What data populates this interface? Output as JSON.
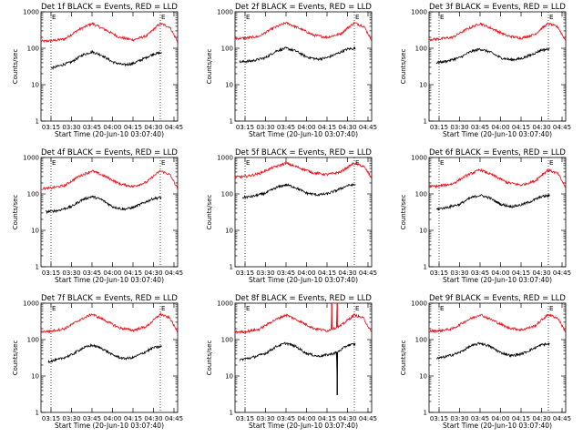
{
  "chart_data": {
    "type": "line",
    "layout": "3x3",
    "y_scale": "log",
    "ylim": [
      1,
      1000
    ],
    "y_tick_labels": [
      "1",
      "10",
      "100",
      "1000"
    ],
    "x_tick_labels": [
      "03:15",
      "03:30",
      "03:45",
      "04:00",
      "04:15",
      "04:30",
      "04:45"
    ],
    "xlim_minutes": [
      187.67,
      287.67
    ],
    "x_tick_minutes": [
      195,
      210,
      225,
      240,
      255,
      270,
      285
    ],
    "xlabel": "Start Time (20-Jun-10 03:07:40)",
    "ylabel": "Counts/sec",
    "marker_label": "E",
    "colors": {
      "events": "#000000",
      "lld": "#e8101a"
    },
    "panels": [
      {
        "title": "Det 1f BLACK = Events, RED = LLD",
        "markers": [
          195,
          275
        ],
        "events": {
          "x": [
            195,
            200,
            210,
            218,
            225,
            232,
            240,
            248,
            255,
            262,
            270,
            276
          ],
          "y": [
            28,
            32,
            42,
            65,
            80,
            65,
            42,
            35,
            38,
            50,
            70,
            75
          ]
        },
        "lld": {
          "x": [
            187.67,
            195,
            205,
            215,
            225,
            235,
            245,
            255,
            265,
            270,
            275,
            282,
            287.67
          ],
          "y": [
            155,
            160,
            180,
            320,
            480,
            320,
            200,
            170,
            220,
            330,
            480,
            380,
            150
          ]
        }
      },
      {
        "title": "Det 2f BLACK = Events, RED = LLD",
        "markers": [
          195,
          275
        ],
        "events": {
          "x": [
            191,
            200,
            210,
            218,
            225,
            232,
            240,
            248,
            255,
            262,
            270,
            276
          ],
          "y": [
            42,
            45,
            55,
            85,
            100,
            85,
            58,
            50,
            55,
            70,
            95,
            100
          ]
        },
        "lld": {
          "x": [
            187.67,
            195,
            205,
            215,
            225,
            235,
            245,
            255,
            265,
            270,
            275,
            282,
            287.67
          ],
          "y": [
            185,
            190,
            210,
            350,
            500,
            350,
            230,
            200,
            250,
            360,
            500,
            400,
            170
          ]
        }
      },
      {
        "title": "Det 3f BLACK = Events, RED = LLD",
        "markers": [
          195,
          275
        ],
        "events": {
          "x": [
            193,
            200,
            210,
            218,
            225,
            232,
            240,
            248,
            255,
            262,
            270,
            276
          ],
          "y": [
            40,
            44,
            55,
            80,
            95,
            80,
            55,
            48,
            52,
            65,
            90,
            95
          ]
        },
        "lld": {
          "x": [
            187.67,
            195,
            205,
            215,
            225,
            235,
            245,
            255,
            265,
            270,
            275,
            282,
            287.67
          ],
          "y": [
            175,
            180,
            200,
            330,
            480,
            330,
            220,
            190,
            240,
            350,
            480,
            380,
            160
          ]
        }
      },
      {
        "title": "Det 4f BLACK = Events, RED = LLD",
        "markers": [
          195,
          275
        ],
        "events": {
          "x": [
            191,
            200,
            210,
            218,
            225,
            232,
            240,
            248,
            255,
            262,
            270,
            276
          ],
          "y": [
            32,
            35,
            45,
            70,
            85,
            70,
            45,
            38,
            42,
            55,
            75,
            80
          ]
        },
        "lld": {
          "x": [
            187.67,
            195,
            205,
            215,
            225,
            235,
            245,
            255,
            265,
            270,
            275,
            282,
            287.67
          ],
          "y": [
            140,
            145,
            170,
            300,
            430,
            300,
            190,
            160,
            210,
            310,
            430,
            340,
            140
          ]
        }
      },
      {
        "title": "Det 5f BLACK = Events, RED = LLD",
        "markers": [
          195,
          275
        ],
        "events": {
          "x": [
            193,
            200,
            210,
            218,
            225,
            232,
            240,
            248,
            255,
            262,
            270,
            276
          ],
          "y": [
            80,
            85,
            105,
            150,
            180,
            150,
            105,
            95,
            100,
            125,
            170,
            180
          ]
        },
        "lld": {
          "x": [
            187.67,
            195,
            205,
            215,
            225,
            235,
            245,
            255,
            265,
            270,
            275,
            282,
            287.67
          ],
          "y": [
            290,
            300,
            360,
            520,
            700,
            520,
            380,
            340,
            400,
            540,
            700,
            560,
            280
          ]
        }
      },
      {
        "title": "Det 6f BLACK = Events, RED = LLD",
        "markers": [
          195,
          275
        ],
        "events": {
          "x": [
            193,
            200,
            210,
            218,
            225,
            232,
            240,
            248,
            255,
            262,
            270,
            276
          ],
          "y": [
            38,
            42,
            52,
            78,
            92,
            78,
            52,
            45,
            50,
            62,
            85,
            90
          ]
        },
        "lld": {
          "x": [
            187.67,
            195,
            205,
            215,
            225,
            235,
            245,
            255,
            265,
            270,
            275,
            282,
            287.67
          ],
          "y": [
            160,
            165,
            190,
            320,
            460,
            320,
            205,
            175,
            225,
            330,
            460,
            360,
            150
          ]
        }
      },
      {
        "title": "Det 7f BLACK = Events, RED = LLD",
        "markers": [
          195,
          275
        ],
        "events": {
          "x": [
            193,
            200,
            210,
            218,
            225,
            232,
            240,
            248,
            255,
            262,
            270,
            276
          ],
          "y": [
            25,
            28,
            38,
            58,
            70,
            58,
            38,
            30,
            32,
            42,
            60,
            65
          ]
        },
        "lld": {
          "x": [
            187.67,
            195,
            205,
            215,
            225,
            235,
            245,
            255,
            265,
            270,
            275,
            282,
            287.67
          ],
          "y": [
            165,
            170,
            200,
            330,
            500,
            330,
            210,
            180,
            230,
            340,
            500,
            390,
            160
          ]
        }
      },
      {
        "title": "Det 8f BLACK = Events, RED = LLD",
        "markers": [
          195,
          275
        ],
        "events": {
          "x": [
            191,
            200,
            210,
            218,
            225,
            232,
            240,
            248,
            255,
            260,
            262,
            262.3,
            262.6,
            266,
            270,
            276
          ],
          "y": [
            28,
            32,
            42,
            65,
            80,
            65,
            42,
            35,
            38,
            42,
            45,
            3,
            45,
            55,
            70,
            75
          ]
        },
        "lld": {
          "x": [
            187.67,
            195,
            205,
            215,
            225,
            235,
            245,
            255,
            258,
            258.3,
            258.6,
            262,
            262.3,
            262.6,
            265,
            270,
            275,
            282,
            287.67
          ],
          "y": [
            160,
            165,
            190,
            320,
            480,
            320,
            205,
            175,
            190,
            1000,
            200,
            210,
            1000,
            220,
            240,
            340,
            480,
            380,
            150
          ]
        }
      },
      {
        "title": "Det 9f BLACK = Events, RED = LLD",
        "markers": [
          195,
          275
        ],
        "events": {
          "x": [
            193,
            200,
            210,
            218,
            225,
            232,
            240,
            248,
            255,
            262,
            270,
            276
          ],
          "y": [
            30,
            34,
            44,
            66,
            80,
            66,
            44,
            36,
            40,
            52,
            72,
            76
          ]
        },
        "lld": {
          "x": [
            187.67,
            195,
            205,
            215,
            225,
            235,
            245,
            255,
            265,
            270,
            275,
            282,
            287.67
          ],
          "y": [
            170,
            175,
            200,
            330,
            490,
            330,
            215,
            185,
            235,
            345,
            490,
            385,
            160
          ]
        }
      }
    ]
  }
}
